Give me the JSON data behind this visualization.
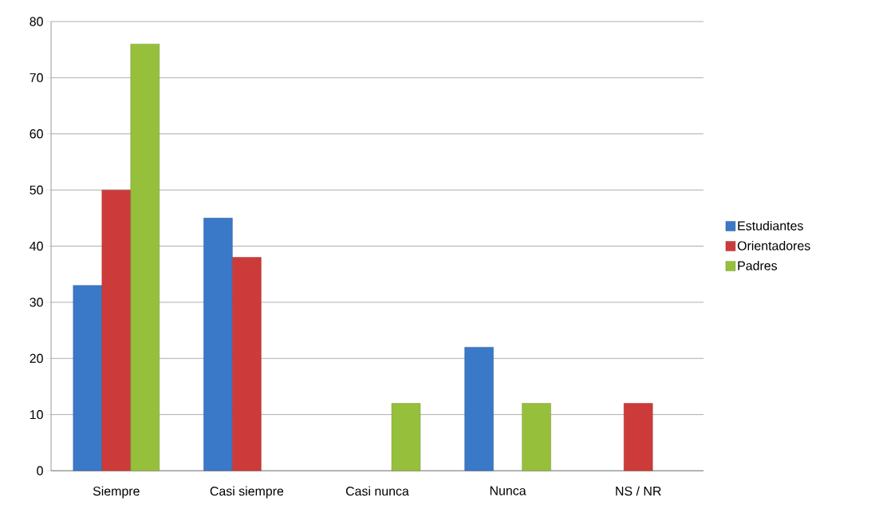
{
  "chart_data": {
    "type": "bar",
    "categories": [
      "Siempre",
      "Casi siempre",
      "Casi nunca",
      "Nunca",
      "NS / NR"
    ],
    "series": [
      {
        "name": "Estudiantes",
        "color": "#3a78c8",
        "values": [
          33,
          45,
          null,
          22,
          null
        ]
      },
      {
        "name": "Orientadores",
        "color": "#cc3b3a",
        "values": [
          50,
          38,
          null,
          null,
          12
        ]
      },
      {
        "name": "Padres",
        "color": "#96c03c",
        "values": [
          76,
          null,
          12,
          12,
          null
        ]
      }
    ],
    "ylim": [
      0,
      80
    ],
    "yticks": [
      0,
      10,
      20,
      30,
      40,
      50,
      60,
      70,
      80
    ],
    "grid": "y",
    "legend": "right"
  }
}
